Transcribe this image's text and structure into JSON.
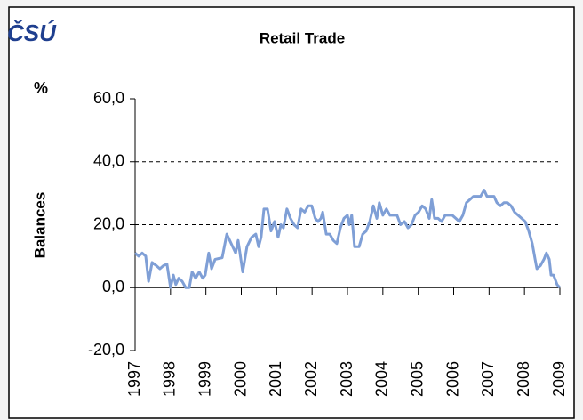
{
  "chart_data": {
    "type": "line",
    "logo": "ČSÚ",
    "title": "Retail Trade",
    "unit": "%",
    "y_label": "Balances",
    "x": [
      1997.0,
      1997.1,
      1997.2,
      1997.3,
      1997.38,
      1997.48,
      1997.6,
      1997.7,
      1997.8,
      1997.9,
      1998.0,
      1998.08,
      1998.15,
      1998.23,
      1998.33,
      1998.43,
      1998.53,
      1998.61,
      1998.71,
      1998.81,
      1998.91,
      1998.98,
      1999.08,
      1999.16,
      1999.26,
      1999.46,
      1999.59,
      1999.84,
      1999.91,
      2000.04,
      2000.16,
      2000.29,
      2000.41,
      2000.49,
      2000.56,
      2000.64,
      2000.74,
      2000.84,
      2000.94,
      2001.04,
      2001.12,
      2001.19,
      2001.29,
      2001.39,
      2001.49,
      2001.59,
      2001.69,
      2001.79,
      2001.89,
      2001.99,
      2002.09,
      2002.17,
      2002.25,
      2002.3,
      2002.4,
      2002.5,
      2002.6,
      2002.7,
      2002.8,
      2002.9,
      2003.0,
      2003.05,
      2003.12,
      2003.2,
      2003.33,
      2003.43,
      2003.53,
      2003.63,
      2003.73,
      2003.83,
      2003.9,
      2004.0,
      2004.1,
      2004.2,
      2004.3,
      2004.4,
      2004.5,
      2004.61,
      2004.71,
      2004.81,
      2004.91,
      2005.01,
      2005.11,
      2005.21,
      2005.31,
      2005.38,
      2005.46,
      2005.56,
      2005.66,
      2005.76,
      2005.86,
      2005.96,
      2006.06,
      2006.16,
      2006.26,
      2006.36,
      2006.46,
      2006.56,
      2006.66,
      2006.76,
      2006.86,
      2006.94,
      2007.04,
      2007.14,
      2007.22,
      2007.32,
      2007.42,
      2007.52,
      2007.62,
      2007.72,
      2007.82,
      2007.92,
      2008.02,
      2008.12,
      2008.22,
      2008.3,
      2008.35,
      2008.45,
      2008.55,
      2008.62,
      2008.7,
      2008.75,
      2008.82,
      2008.92,
      2009.0
    ],
    "series": [
      {
        "name": "Retail Trade",
        "color": "#7f9fd6",
        "values": [
          11,
          10,
          11,
          10,
          2,
          8,
          7,
          6,
          7,
          7.5,
          0,
          4,
          1,
          3,
          2,
          0,
          0,
          5,
          3,
          5,
          3,
          4,
          11,
          6,
          9,
          9.5,
          17,
          11,
          15,
          5,
          13,
          16,
          17,
          13,
          16,
          25,
          25,
          18,
          21,
          16,
          20,
          19,
          25,
          22,
          20,
          19,
          25,
          24,
          26,
          26,
          22,
          21,
          22,
          24,
          17,
          17,
          15,
          14,
          19,
          22,
          23,
          20,
          23,
          13,
          13,
          17,
          18,
          21,
          26,
          22,
          27,
          23,
          25,
          23,
          23,
          23,
          20,
          21,
          19,
          20,
          23,
          24,
          26,
          25,
          22,
          28,
          22,
          22,
          21,
          23,
          23,
          23,
          22,
          21,
          23,
          27,
          28,
          29,
          29,
          29,
          31,
          29,
          29,
          29,
          27,
          26,
          27,
          27,
          26,
          24,
          23,
          22,
          21,
          18,
          14,
          9,
          6,
          7,
          9,
          11,
          9,
          4,
          4,
          1,
          0
        ]
      }
    ],
    "xlim": [
      1997,
      2009
    ],
    "xticks": [
      1997,
      1998,
      1999,
      2000,
      2001,
      2002,
      2003,
      2004,
      2005,
      2006,
      2007,
      2008,
      2009
    ],
    "ylim": [
      -20,
      60
    ],
    "yticks": [
      {
        "value": -20,
        "label": "-20,0"
      },
      {
        "value": 0,
        "label": "0,0"
      },
      {
        "value": 20,
        "label": "20,0"
      },
      {
        "value": 40,
        "label": "40,0"
      },
      {
        "value": 60,
        "label": "60,0"
      }
    ],
    "grid": true
  }
}
